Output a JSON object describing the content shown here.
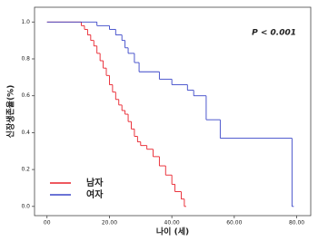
{
  "chart_data": {
    "type": "step",
    "x_label": "나이 (세)",
    "y_label": "신장생존율(%)",
    "annotation": "P < 0.001",
    "xlim": [
      -4,
      84.5
    ],
    "ylim": [
      -0.05,
      1.08
    ],
    "xticks": [
      {
        "value": 0,
        "label": "00"
      },
      {
        "value": 20,
        "label": "20.00"
      },
      {
        "value": 40,
        "label": "40.00"
      },
      {
        "value": 60,
        "label": "60.00"
      },
      {
        "value": 80,
        "label": "80.00"
      }
    ],
    "yticks": [
      {
        "value": 0,
        "label": "0.0"
      },
      {
        "value": 0.2,
        "label": "0.2"
      },
      {
        "value": 0.4,
        "label": "0.4"
      },
      {
        "value": 0.6,
        "label": "0.6"
      },
      {
        "value": 0.8,
        "label": "0.8"
      },
      {
        "value": 1,
        "label": "1.0"
      }
    ],
    "legend": "lower left",
    "series": [
      {
        "name": "남자",
        "color": "#e8202a",
        "x": [
          0,
          11,
          12,
          13,
          14,
          15,
          16,
          17,
          18,
          19,
          20,
          21,
          22,
          23,
          24,
          25,
          26,
          27,
          28,
          29,
          30,
          32,
          34,
          36,
          38,
          40,
          41,
          43,
          44
        ],
        "values": [
          1,
          0.98,
          0.96,
          0.93,
          0.9,
          0.87,
          0.83,
          0.79,
          0.75,
          0.71,
          0.66,
          0.62,
          0.58,
          0.55,
          0.52,
          0.5,
          0.46,
          0.42,
          0.38,
          0.35,
          0.33,
          0.31,
          0.27,
          0.22,
          0.17,
          0.12,
          0.08,
          0.04,
          0
        ]
      },
      {
        "name": "여자",
        "color": "#3a46c8",
        "x": [
          0,
          16,
          20,
          22,
          24,
          25,
          26,
          28,
          29.5,
          36,
          40,
          45,
          47,
          51,
          55.5,
          78.5
        ],
        "values": [
          1,
          0.98,
          0.96,
          0.93,
          0.9,
          0.86,
          0.83,
          0.78,
          0.73,
          0.69,
          0.66,
          0.63,
          0.6,
          0.47,
          0.37,
          0
        ]
      }
    ]
  }
}
